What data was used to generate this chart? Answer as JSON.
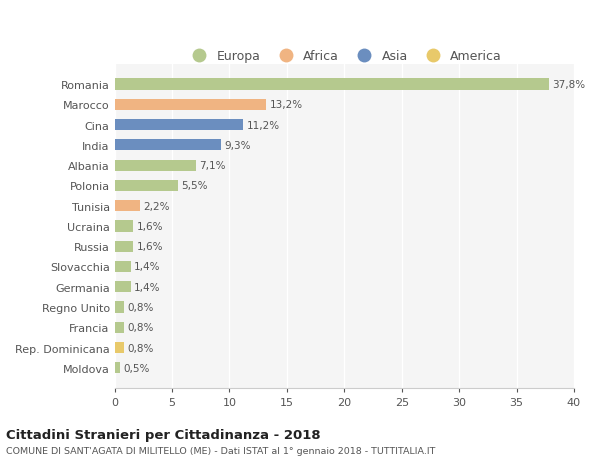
{
  "categories": [
    "Romania",
    "Marocco",
    "Cina",
    "India",
    "Albania",
    "Polonia",
    "Tunisia",
    "Ucraina",
    "Russia",
    "Slovacchia",
    "Germania",
    "Regno Unito",
    "Francia",
    "Rep. Dominicana",
    "Moldova"
  ],
  "values": [
    37.8,
    13.2,
    11.2,
    9.3,
    7.1,
    5.5,
    2.2,
    1.6,
    1.6,
    1.4,
    1.4,
    0.8,
    0.8,
    0.8,
    0.5
  ],
  "labels": [
    "37,8%",
    "13,2%",
    "11,2%",
    "9,3%",
    "7,1%",
    "5,5%",
    "2,2%",
    "1,6%",
    "1,6%",
    "1,4%",
    "1,4%",
    "0,8%",
    "0,8%",
    "0,8%",
    "0,5%"
  ],
  "colors": [
    "#b5c98e",
    "#f0b482",
    "#6b8ebf",
    "#6b8ebf",
    "#b5c98e",
    "#b5c98e",
    "#f0b482",
    "#b5c98e",
    "#b5c98e",
    "#b5c98e",
    "#b5c98e",
    "#b5c98e",
    "#b5c98e",
    "#e8c96a",
    "#b5c98e"
  ],
  "legend_labels": [
    "Europa",
    "Africa",
    "Asia",
    "America"
  ],
  "legend_colors": [
    "#b5c98e",
    "#f0b482",
    "#6b8ebf",
    "#e8c96a"
  ],
  "title": "Cittadini Stranieri per Cittadinanza - 2018",
  "subtitle": "COMUNE DI SANT'AGATA DI MILITELLO (ME) - Dati ISTAT al 1° gennaio 2018 - TUTTITALIA.IT",
  "xlim": [
    0,
    40
  ],
  "xticks": [
    0,
    5,
    10,
    15,
    20,
    25,
    30,
    35,
    40
  ],
  "background_color": "#ffffff",
  "plot_bg_color": "#f5f5f5",
  "grid_color": "#ffffff"
}
